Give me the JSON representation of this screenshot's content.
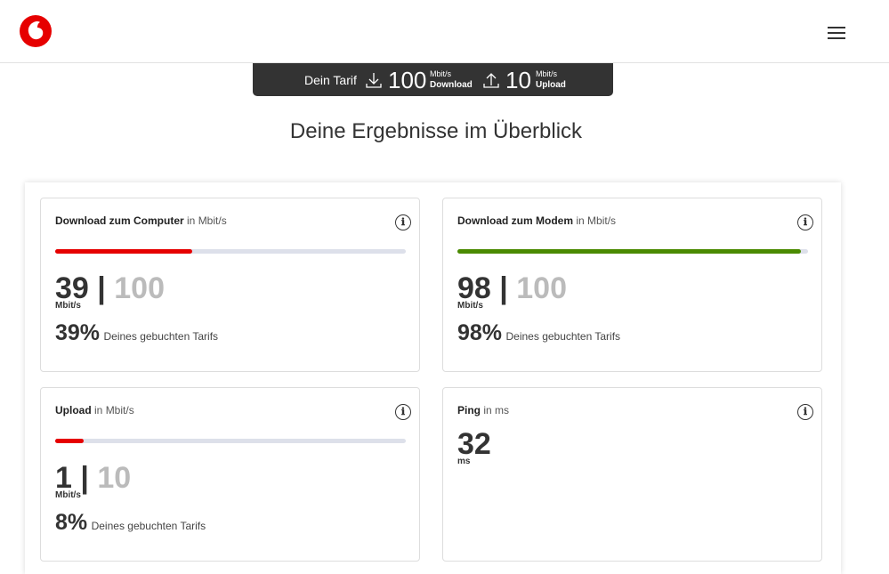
{
  "header": {
    "tariff": {
      "label": "Dein Tarif",
      "download": 100,
      "download_unit": "Mbit/s",
      "download_label": "Download",
      "upload": 10,
      "upload_unit": "Mbit/s",
      "upload_label": "Upload"
    }
  },
  "heading": "Deine Ergebnisse im Überblick",
  "separator": "|",
  "cards": [
    {
      "title": "Download zum Computer",
      "title_unit": "in Mbit/s",
      "value": 39,
      "max": 100,
      "value_unit": "Mbit/s",
      "percent": 39,
      "percent_label": "39%",
      "note": "Deines gebuchten Tarifs",
      "color": "#e60000"
    },
    {
      "title": "Download zum Modem",
      "title_unit": "in Mbit/s",
      "value": 98,
      "max": 100,
      "value_unit": "Mbit/s",
      "percent": 98,
      "percent_label": "98%",
      "note": "Deines gebuchten Tarifs",
      "color": "#4a8a00"
    },
    {
      "title": "Upload",
      "title_unit": "in Mbit/s",
      "value": 1,
      "max": 10,
      "value_unit": "Mbit/s",
      "percent": 8,
      "percent_label": "8%",
      "note": "Deines gebuchten Tarifs",
      "color": "#e60000"
    },
    {
      "title": "Ping",
      "title_unit": "in ms",
      "value": 32,
      "value_unit": "ms"
    }
  ]
}
